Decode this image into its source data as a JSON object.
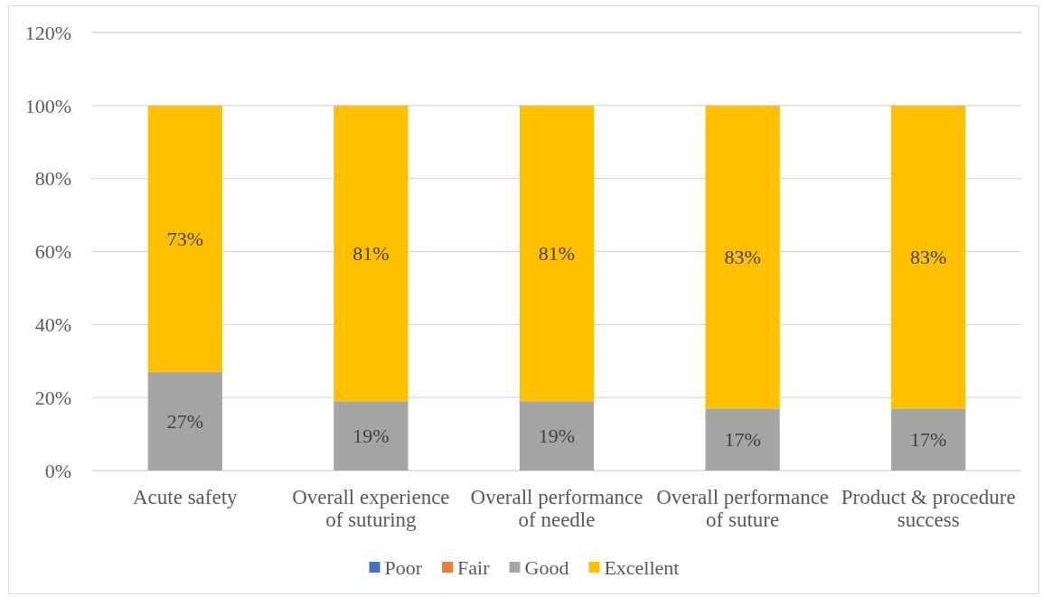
{
  "chart_data": {
    "type": "bar",
    "stacked": true,
    "categories": [
      "Acute safety",
      "Overall experience of suturing",
      "Overall performance of needle",
      "Overall performance of suture",
      "Product & procedure success"
    ],
    "series": [
      {
        "name": "Poor",
        "color": "#4472c4",
        "values": [
          0,
          0,
          0,
          0,
          0
        ]
      },
      {
        "name": "Fair",
        "color": "#ed7d31",
        "values": [
          0,
          0,
          0,
          0,
          0
        ]
      },
      {
        "name": "Good",
        "color": "#a5a5a5",
        "values": [
          27,
          19,
          19,
          17,
          17
        ],
        "value_labels": [
          "27%",
          "19%",
          "19%",
          "17%",
          "17%"
        ]
      },
      {
        "name": "Excellent",
        "color": "#ffc000",
        "values": [
          73,
          81,
          81,
          83,
          83
        ],
        "value_labels": [
          "73%",
          "81%",
          "81%",
          "83%",
          "83%"
        ]
      }
    ],
    "ylim": [
      0,
      120
    ],
    "yticks": [
      {
        "value": 0,
        "label": "0%"
      },
      {
        "value": 20,
        "label": "20%"
      },
      {
        "value": 40,
        "label": "40%"
      },
      {
        "value": 60,
        "label": "60%"
      },
      {
        "value": 80,
        "label": "80%"
      },
      {
        "value": 100,
        "label": "100%"
      },
      {
        "value": 120,
        "label": "120%"
      }
    ],
    "grid": "y",
    "legend": "bottom"
  }
}
